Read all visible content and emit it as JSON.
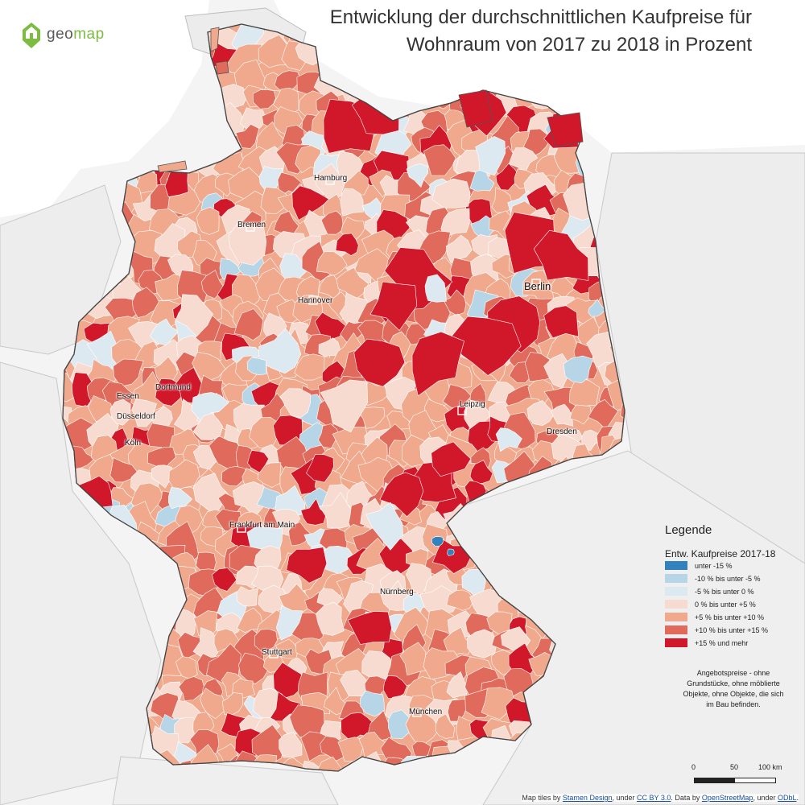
{
  "title": {
    "line1": "Entwicklung der durchschnittlichen Kaufpreise für",
    "line2": "Wohnraum von 2017 zu 2018 in Prozent"
  },
  "logo": {
    "text_main": "geo",
    "text_accent": "map",
    "icon": "house-pin-icon"
  },
  "cities": [
    {
      "name": "Hamburg",
      "key": "hamburg"
    },
    {
      "name": "Bremen",
      "key": "bremen"
    },
    {
      "name": "Berlin",
      "key": "berlin"
    },
    {
      "name": "Hannover",
      "key": "hannover"
    },
    {
      "name": "Dortmund",
      "key": "dortmund"
    },
    {
      "name": "Essen",
      "key": "essen"
    },
    {
      "name": "Düsseldorf",
      "key": "duesseldorf"
    },
    {
      "name": "Köln",
      "key": "koeln"
    },
    {
      "name": "Leipzig",
      "key": "leipzig"
    },
    {
      "name": "Dresden",
      "key": "dresden"
    },
    {
      "name": "Frankfurt am Main",
      "key": "frankfurt"
    },
    {
      "name": "Nürnberg",
      "key": "nuernberg"
    },
    {
      "name": "Stuttgart",
      "key": "stuttgart"
    },
    {
      "name": "München",
      "key": "muenchen"
    }
  ],
  "legend": {
    "title": "Legende",
    "subtitle": "Entw. Kaufpreise 2017-18",
    "classes": [
      {
        "label": "unter -15 %",
        "color": "#3182bd"
      },
      {
        "label": "-10 % bis unter -5 %",
        "color": "#b6d6e8"
      },
      {
        "label": "-5 % bis unter 0 %",
        "color": "#dde9f1"
      },
      {
        "label": "0 % bis unter +5 %",
        "color": "#f7dbd0"
      },
      {
        "label": "+5 % bis unter +10 %",
        "color": "#f0a98c"
      },
      {
        "label": "+10 % bis unter +15 %",
        "color": "#e06b5c"
      },
      {
        "label": "+15 % und mehr",
        "color": "#d1172a"
      }
    ]
  },
  "note": "Angebotspreise - ohne Grundstücke, ohne möblierte Objekte, ohne Objekte, die sich im Bau befinden.",
  "scale": {
    "labels": [
      "0",
      "50",
      "100 km"
    ]
  },
  "attribution": {
    "prefix": "Map tiles by ",
    "stamen": "Stamen Design",
    "under1": ", under ",
    "ccby": "CC BY 3.0",
    "data": ". Data by ",
    "osm": "OpenStreetMap",
    "under2": ", under ",
    "odbl": "ODbL",
    "suffix": "."
  }
}
